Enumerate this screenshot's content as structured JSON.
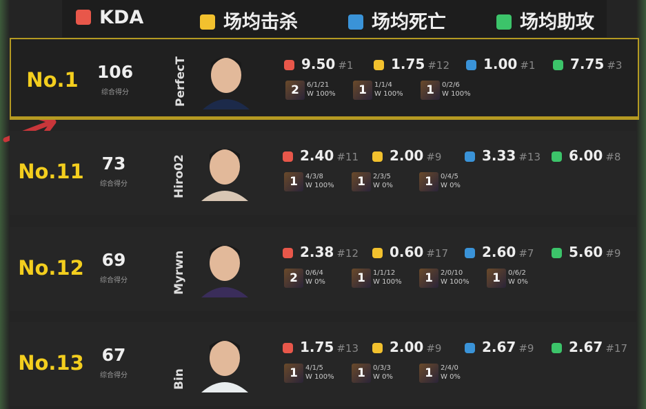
{
  "legend": [
    {
      "label": "KDA",
      "color": "#e8574a"
    },
    {
      "label": "场均击杀",
      "color": "#f2c12e"
    },
    {
      "label": "场均死亡",
      "color": "#3a93d8"
    },
    {
      "label": "场均助攻",
      "color": "#3cc46a"
    }
  ],
  "rows": [
    {
      "rank": "No.1",
      "score": "106",
      "score_label": "综合得分",
      "player": "PerfecT",
      "highlight": true,
      "stats": [
        {
          "value": "9.50",
          "rank": "#1"
        },
        {
          "value": "1.75",
          "rank": "#12"
        },
        {
          "value": "1.00",
          "rank": "#1"
        },
        {
          "value": "7.75",
          "rank": "#3"
        }
      ],
      "champions": [
        {
          "games": "2",
          "kda": "6/1/21",
          "win": "W 100%"
        },
        {
          "games": "1",
          "kda": "1/1/4",
          "win": "W 100%"
        },
        {
          "games": "1",
          "kda": "0/2/6",
          "win": "W 100%"
        }
      ]
    },
    {
      "rank": "No.11",
      "score": "73",
      "score_label": "综合得分",
      "player": "Hiro02",
      "highlight": false,
      "stats": [
        {
          "value": "2.40",
          "rank": "#11"
        },
        {
          "value": "2.00",
          "rank": "#9"
        },
        {
          "value": "3.33",
          "rank": "#13"
        },
        {
          "value": "6.00",
          "rank": "#8"
        }
      ],
      "champions": [
        {
          "games": "1",
          "kda": "4/3/8",
          "win": "W 100%"
        },
        {
          "games": "1",
          "kda": "2/3/5",
          "win": "W 0%"
        },
        {
          "games": "1",
          "kda": "0/4/5",
          "win": "W 0%"
        }
      ]
    },
    {
      "rank": "No.12",
      "score": "69",
      "score_label": "综合得分",
      "player": "Myrwn",
      "highlight": false,
      "stats": [
        {
          "value": "2.38",
          "rank": "#12"
        },
        {
          "value": "0.60",
          "rank": "#17"
        },
        {
          "value": "2.60",
          "rank": "#7"
        },
        {
          "value": "5.60",
          "rank": "#9"
        }
      ],
      "champions": [
        {
          "games": "2",
          "kda": "0/6/4",
          "win": "W 0%"
        },
        {
          "games": "1",
          "kda": "1/1/12",
          "win": "W 100%"
        },
        {
          "games": "1",
          "kda": "2/0/10",
          "win": "W 100%"
        },
        {
          "games": "1",
          "kda": "0/6/2",
          "win": "W 0%"
        }
      ]
    },
    {
      "rank": "No.13",
      "score": "67",
      "score_label": "综合得分",
      "player": "Bin",
      "highlight": false,
      "stats": [
        {
          "value": "1.75",
          "rank": "#13"
        },
        {
          "value": "2.00",
          "rank": "#9"
        },
        {
          "value": "2.67",
          "rank": "#9"
        },
        {
          "value": "2.67",
          "rank": "#17"
        }
      ],
      "champions": [
        {
          "games": "1",
          "kda": "4/1/5",
          "win": "W 100%"
        },
        {
          "games": "1",
          "kda": "0/3/3",
          "win": "W 0%"
        },
        {
          "games": "1",
          "kda": "2/4/0",
          "win": "W 0%"
        }
      ]
    }
  ]
}
